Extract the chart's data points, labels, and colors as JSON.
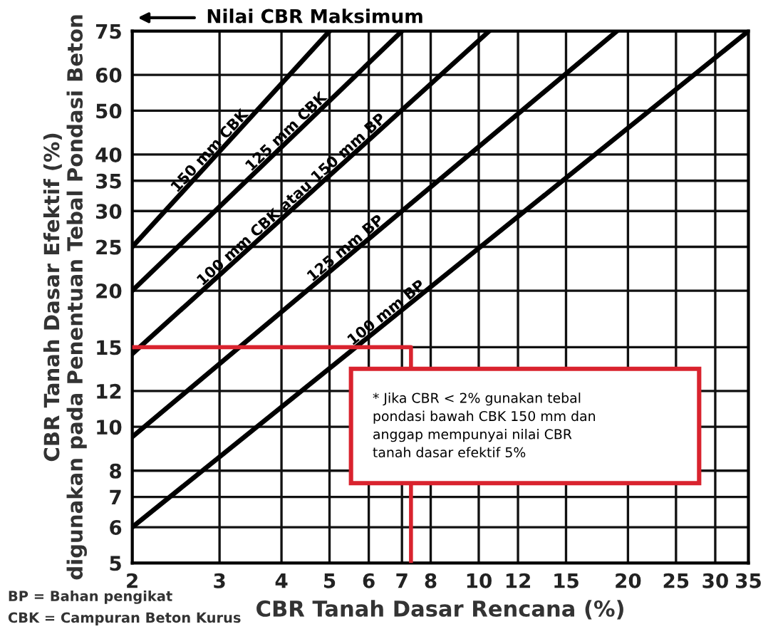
{
  "chart_data": {
    "type": "line",
    "xlabel": "CBR Tanah Dasar Rencana (%)",
    "ylabel": "CBR Tanah Dasar Efektif (%)\ndigunakan pada Penentuan Tebal Pondasi Beton",
    "log": "xy",
    "grid": true,
    "legend": false,
    "line_style": "solid",
    "marker": "none",
    "xlim": [
      2,
      35
    ],
    "ylim": [
      5,
      75
    ],
    "xticks": [
      2,
      3,
      4,
      5,
      6,
      7,
      8,
      10,
      12,
      15,
      20,
      25,
      30,
      35
    ],
    "yticks": [
      5,
      6,
      7,
      8,
      10,
      12,
      15,
      20,
      25,
      30,
      35,
      40,
      50,
      60,
      75
    ],
    "series": [
      {
        "name": "150 mm CBK",
        "color": "#000000",
        "x": [
          2,
          5
        ],
        "values": [
          25,
          75
        ]
      },
      {
        "name": "125 mm CBK",
        "color": "#000000",
        "x": [
          2,
          7
        ],
        "values": [
          20,
          75
        ]
      },
      {
        "name": "100 mm CBK atau 150 mm BP",
        "color": "#000000",
        "x": [
          2,
          10.5
        ],
        "values": [
          14.5,
          75
        ]
      },
      {
        "name": "125 mm BP",
        "color": "#000000",
        "x": [
          2,
          19
        ],
        "values": [
          9.5,
          75
        ]
      },
      {
        "name": "100 mm BP",
        "color": "#000000",
        "x": [
          2,
          35
        ],
        "values": [
          6,
          75
        ]
      },
      {
        "color": "#d9232e",
        "x": [
          2,
          7.3,
          7.3
        ],
        "values": [
          15,
          15,
          5
        ]
      }
    ],
    "annotations": [
      "Nilai CBR Maksimum",
      "* Jika CBR < 2% gunakan tebal\npondasi bawah CBK 150 mm dan\nanggap mempunyai nilai CBR\ntanah dasar efektif 5%",
      "BP = Bahan pengikat",
      "CBK = Campuran Beton Kurus"
    ]
  }
}
